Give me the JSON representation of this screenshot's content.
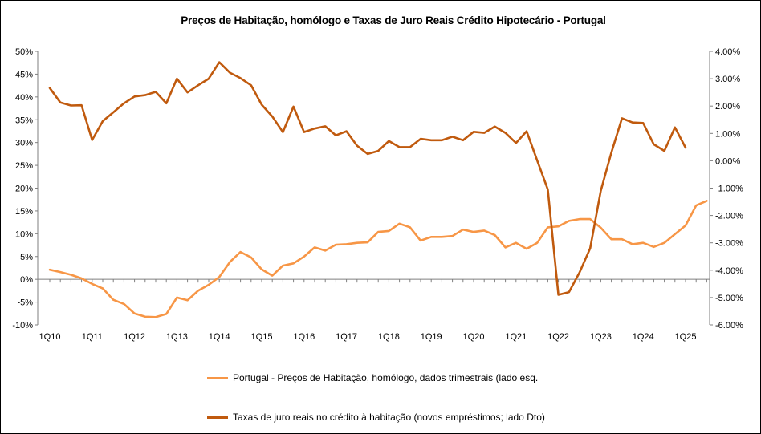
{
  "chart_data": {
    "type": "line",
    "title": "Preços de Habitação, homólogo e Taxas de Juro Reais Crédito Hipotecário  -  Portugal",
    "x_tick_labels": [
      "1Q10",
      "1Q11",
      "1Q12",
      "1Q13",
      "1Q14",
      "1Q15",
      "1Q16",
      "1Q17",
      "1Q18",
      "1Q19",
      "1Q20",
      "1Q21",
      "1Q22",
      "1Q23",
      "1Q24",
      "1Q25"
    ],
    "y_left": {
      "ylim": [
        -0.1,
        0.5
      ],
      "tick_labels": [
        "50%",
        "45%",
        "40%",
        "35%",
        "30%",
        "25%",
        "20%",
        "15%",
        "10%",
        "5%",
        "0%",
        "-5%",
        "-10%"
      ]
    },
    "y_right": {
      "ylim": [
        -0.06,
        0.04
      ],
      "tick_labels": [
        "4.00%",
        "3.00%",
        "2.00%",
        "1.00%",
        "0.00%",
        "-1.00%",
        "-2.00%",
        "-3.00%",
        "-4.00%",
        "-5.00%",
        "-6.00%"
      ]
    },
    "grid": false,
    "legend_position": "bottom",
    "series": [
      {
        "name": "Portugal - Preços de Habitação, homólogo, dados trimestrais (lado esq.",
        "axis": "left",
        "color": "#F79646",
        "values": [
          0.021,
          0.016,
          0.01,
          0.002,
          -0.01,
          -0.02,
          -0.045,
          -0.054,
          -0.075,
          -0.082,
          -0.083,
          -0.076,
          -0.04,
          -0.046,
          -0.025,
          -0.012,
          0.005,
          0.038,
          0.06,
          0.048,
          0.022,
          0.008,
          0.03,
          0.035,
          0.05,
          0.07,
          0.063,
          0.076,
          0.077,
          0.08,
          0.081,
          0.104,
          0.106,
          0.122,
          0.114,
          0.085,
          0.093,
          0.093,
          0.095,
          0.109,
          0.104,
          0.107,
          0.097,
          0.07,
          0.08,
          0.067,
          0.08,
          0.114,
          0.116,
          0.128,
          0.132,
          0.132,
          0.113,
          0.088,
          0.088,
          0.077,
          0.08,
          0.071,
          0.08,
          0.099,
          0.118,
          0.162,
          0.172
        ]
      },
      {
        "name": "Taxas de juro reais no crédito à habitação (novos empréstimos; lado Dto)",
        "axis": "right",
        "color": "#C05A0E",
        "values": [
          0.0266,
          0.0213,
          0.0202,
          0.0203,
          0.0076,
          0.0145,
          0.0177,
          0.021,
          0.0235,
          0.024,
          0.0252,
          0.021,
          0.03,
          0.025,
          0.0276,
          0.03,
          0.036,
          0.0322,
          0.0302,
          0.0276,
          0.0205,
          0.0162,
          0.0105,
          0.0198,
          0.0105,
          0.0118,
          0.0126,
          0.0093,
          0.0108,
          0.0055,
          0.0025,
          0.0036,
          0.0072,
          0.005,
          0.005,
          0.008,
          0.0075,
          0.0075,
          0.0088,
          0.0075,
          0.0106,
          0.0102,
          0.0125,
          0.0102,
          0.0065,
          0.0108,
          0.0001,
          -0.0105,
          -0.049,
          -0.048,
          -0.0408,
          -0.032,
          -0.011,
          0.003,
          0.0155,
          0.014,
          0.0138,
          0.006,
          0.0036,
          0.0122,
          0.0048
        ]
      }
    ]
  }
}
